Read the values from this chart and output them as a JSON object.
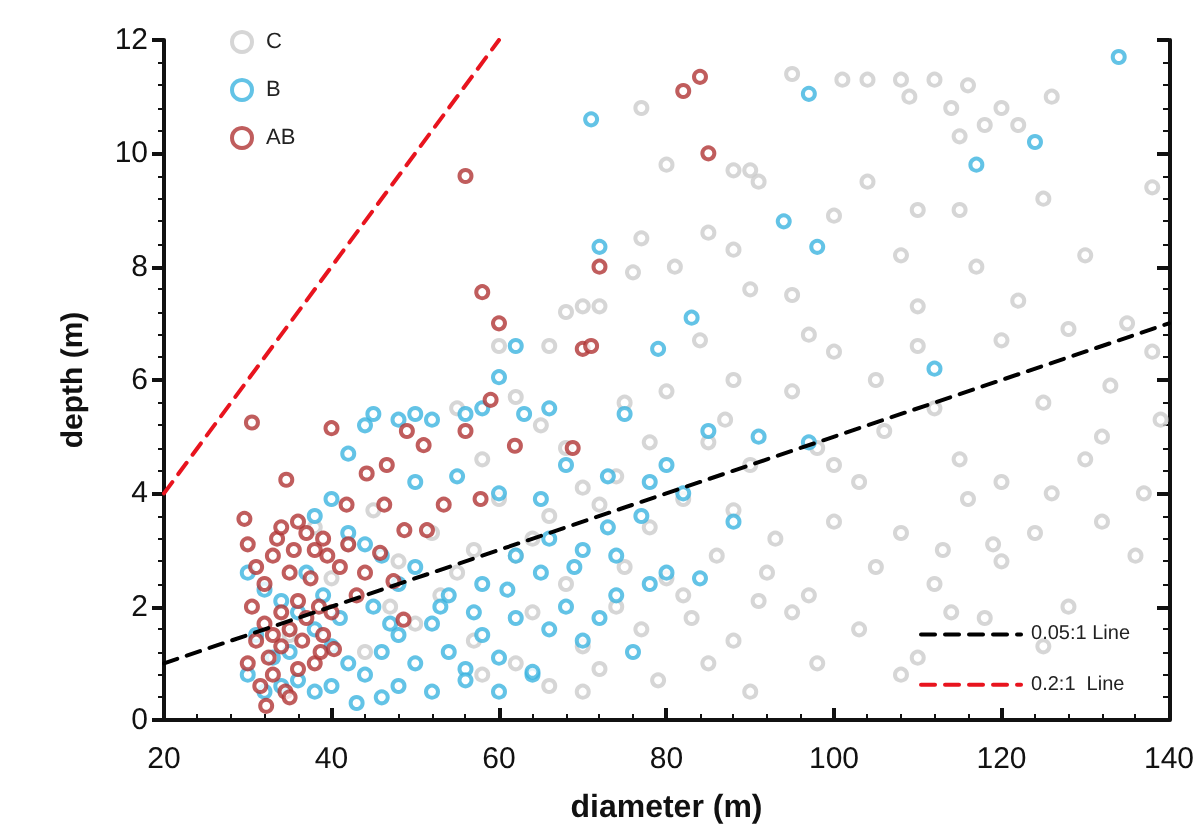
{
  "chart_data": {
    "type": "scatter",
    "xlabel": "diameter (m)",
    "ylabel": "depth (m)",
    "xlim": [
      20,
      140
    ],
    "xticks": [
      20,
      40,
      60,
      80,
      100,
      120,
      140
    ],
    "ylim": [
      0,
      12
    ],
    "yticks": [
      0,
      2,
      4,
      6,
      8,
      10,
      12
    ],
    "grid": false,
    "legend": "top left",
    "marker": "circle",
    "series": [
      {
        "name": "C",
        "color": "#cccccc",
        "x": [
          77,
          95,
          101,
          104,
          108,
          109,
          112,
          115,
          114,
          116,
          120,
          122,
          118,
          126,
          80,
          88,
          90,
          91,
          104,
          110,
          115,
          125,
          138,
          85,
          88,
          77,
          81,
          100,
          108,
          117,
          130,
          72,
          76,
          90,
          95,
          110,
          122,
          135,
          60,
          66,
          68,
          70,
          84,
          100,
          120,
          128,
          138,
          55,
          62,
          65,
          75,
          80,
          88,
          95,
          105,
          112,
          125,
          133,
          58,
          68,
          74,
          85,
          90,
          98,
          103,
          115,
          120,
          130,
          137,
          45,
          52,
          60,
          66,
          72,
          78,
          82,
          88,
          93,
          100,
          108,
          116,
          124,
          132,
          40,
          48,
          55,
          62,
          68,
          75,
          80,
          86,
          92,
          97,
          105,
          112,
          120,
          128,
          136,
          35,
          44,
          50,
          57,
          64,
          70,
          77,
          83,
          88,
          95,
          103,
          110,
          118,
          125,
          58,
          66,
          72,
          79,
          85,
          90,
          98,
          108,
          114,
          62,
          70,
          74,
          82,
          91,
          100,
          106,
          110,
          97,
          87,
          78,
          70,
          64,
          57,
          53,
          47,
          42,
          38,
          132,
          126,
          139,
          119,
          113
        ],
        "values": [
          10.8,
          11.4,
          11.3,
          11.3,
          11.3,
          11.0,
          11.3,
          10.3,
          10.8,
          11.2,
          10.8,
          10.5,
          10.5,
          11.0,
          9.8,
          9.7,
          9.7,
          9.5,
          9.5,
          9.0,
          9.0,
          9.2,
          9.4,
          8.6,
          8.3,
          8.5,
          8.0,
          8.9,
          8.2,
          8.0,
          8.2,
          7.3,
          7.9,
          7.6,
          7.5,
          7.3,
          7.4,
          7.0,
          6.6,
          6.6,
          7.2,
          7.3,
          6.7,
          6.5,
          6.7,
          6.9,
          6.5,
          5.5,
          5.7,
          5.2,
          5.6,
          5.8,
          6.0,
          5.8,
          6.0,
          5.5,
          5.6,
          5.9,
          4.6,
          4.8,
          4.3,
          4.9,
          4.5,
          4.8,
          4.2,
          4.6,
          4.2,
          4.6,
          4.0,
          3.7,
          3.3,
          3.9,
          3.6,
          3.8,
          3.4,
          3.9,
          3.7,
          3.2,
          3.5,
          3.3,
          3.9,
          3.3,
          3.5,
          2.5,
          2.8,
          2.6,
          2.9,
          2.4,
          2.7,
          2.5,
          2.9,
          2.6,
          2.2,
          2.7,
          2.4,
          2.8,
          2.0,
          2.9,
          1.5,
          1.2,
          1.7,
          1.4,
          1.9,
          1.3,
          1.6,
          1.8,
          1.4,
          1.9,
          1.6,
          1.1,
          1.8,
          1.3,
          0.8,
          0.6,
          0.9,
          0.7,
          1.0,
          0.5,
          1.0,
          0.8,
          1.9,
          1.0,
          0.5,
          2.0,
          2.2,
          2.1,
          4.5,
          5.1,
          6.6,
          6.8,
          5.3,
          4.9,
          4.1,
          3.2,
          3.0,
          2.2,
          2.0,
          3.1,
          3.4,
          5.0,
          4.0,
          5.3,
          3.1,
          3.0
        ]
      },
      {
        "name": "B",
        "color": "#3cb4e0",
        "x": [
          71,
          134,
          97,
          124,
          117,
          94,
          98,
          72,
          83,
          79,
          112,
          62,
          60,
          75,
          85,
          91,
          97,
          80,
          82,
          78,
          73,
          68,
          65,
          60,
          55,
          50,
          45,
          44,
          42,
          50,
          52,
          48,
          56,
          58,
          66,
          63,
          38,
          40,
          42,
          44,
          46,
          48,
          50,
          54,
          58,
          62,
          66,
          70,
          74,
          30,
          32,
          34,
          36,
          38,
          40,
          42,
          44,
          46,
          48,
          50,
          52,
          54,
          56,
          58,
          60,
          62,
          64,
          66,
          68,
          70,
          72,
          74,
          76,
          78,
          80,
          84,
          88,
          30,
          32,
          34,
          36,
          38,
          40,
          43,
          46,
          48,
          52,
          56,
          60,
          64,
          35,
          37,
          39,
          41,
          45,
          47,
          53,
          57,
          61,
          65,
          69,
          73,
          77,
          31,
          33
        ],
        "values": [
          10.6,
          11.7,
          11.05,
          10.2,
          9.8,
          8.8,
          8.35,
          8.35,
          7.1,
          6.55,
          6.2,
          6.6,
          6.05,
          5.4,
          5.1,
          5.0,
          4.9,
          4.5,
          4.0,
          4.2,
          4.3,
          4.5,
          3.9,
          4.0,
          4.3,
          4.2,
          5.4,
          5.2,
          4.7,
          5.4,
          5.3,
          5.3,
          5.4,
          5.5,
          5.5,
          5.4,
          3.6,
          3.9,
          3.3,
          3.1,
          2.9,
          2.4,
          2.7,
          2.2,
          2.4,
          2.9,
          3.2,
          3.0,
          2.9,
          2.6,
          2.3,
          2.1,
          1.9,
          1.6,
          1.3,
          1.0,
          0.8,
          1.2,
          1.5,
          1.0,
          1.7,
          1.2,
          0.9,
          1.5,
          1.1,
          1.8,
          0.8,
          1.6,
          2.0,
          1.4,
          1.8,
          2.2,
          1.2,
          2.4,
          2.6,
          2.5,
          3.5,
          0.8,
          0.5,
          0.6,
          0.7,
          0.5,
          0.6,
          0.3,
          0.4,
          0.6,
          0.5,
          0.7,
          0.5,
          0.85,
          1.2,
          2.6,
          2.2,
          1.8,
          2.0,
          1.7,
          2.0,
          1.9,
          2.3,
          2.6,
          2.7,
          3.4,
          3.6,
          1.5,
          1.1
        ]
      },
      {
        "name": "AB",
        "color": "#b03434",
        "x": [
          30.5,
          40,
          56,
          58,
          60,
          59,
          61.9,
          82,
          84,
          85,
          72,
          70,
          71,
          49,
          51,
          56,
          29.6,
          34.6,
          44.2,
          46.6,
          53.4,
          57.8,
          68.8,
          51.4,
          46.3,
          48.7,
          41.8,
          48.6,
          47.4,
          45.8,
          30,
          30.5,
          31,
          31.5,
          32,
          32,
          32.5,
          33,
          33,
          33.5,
          34,
          34,
          34.5,
          35,
          35,
          35.5,
          36,
          36,
          36.5,
          37,
          37,
          37.5,
          38,
          38,
          38.5,
          39,
          39.5,
          40,
          41,
          42,
          43,
          44,
          30,
          31,
          34,
          36,
          39,
          32.2,
          38.7,
          40.3,
          35,
          33
        ],
        "values": [
          5.25,
          5.15,
          9.6,
          7.55,
          7.0,
          5.65,
          4.84,
          11.1,
          11.35,
          10.0,
          8.0,
          6.55,
          6.6,
          5.1,
          4.85,
          5.1,
          3.55,
          4.24,
          4.35,
          4.5,
          3.8,
          3.9,
          4.8,
          3.35,
          3.8,
          3.35,
          3.8,
          1.77,
          2.45,
          2.95,
          1.0,
          2.0,
          1.4,
          0.6,
          2.4,
          1.7,
          1.1,
          0.8,
          2.9,
          3.2,
          1.9,
          1.3,
          0.5,
          2.6,
          1.6,
          3.0,
          2.1,
          0.9,
          1.4,
          3.3,
          1.8,
          2.5,
          1.0,
          3.0,
          2.0,
          1.5,
          2.9,
          1.9,
          2.7,
          3.1,
          2.2,
          2.6,
          3.1,
          2.7,
          3.4,
          3.5,
          3.2,
          0.25,
          1.2,
          1.25,
          0.4,
          1.5
        ]
      },
      {
        "name": "0.05:1 Line",
        "type": "line",
        "color": "#000000",
        "line_style": "dashed",
        "marker": "none",
        "x": [
          20,
          140
        ],
        "values": [
          1,
          7
        ]
      },
      {
        "name": "0.2:1  Line",
        "type": "line",
        "color": "#e8141e",
        "line_style": "dashed",
        "marker": "none",
        "x": [
          20,
          60
        ],
        "values": [
          4,
          12
        ]
      }
    ]
  }
}
